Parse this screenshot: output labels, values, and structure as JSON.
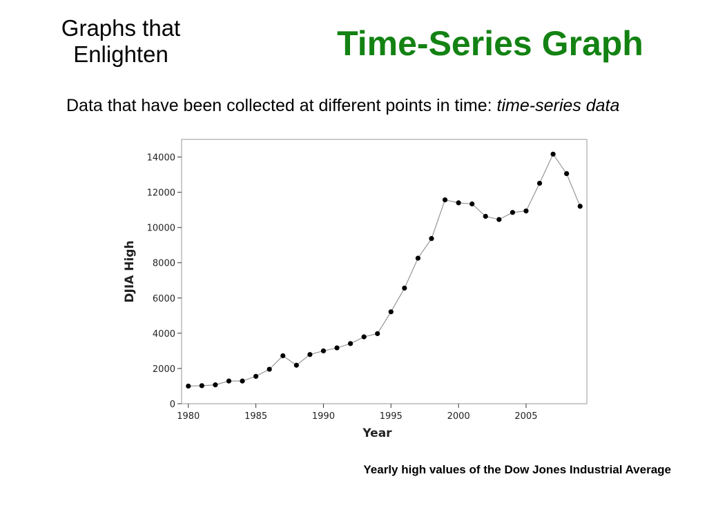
{
  "slide": {
    "section_title_line1": "Graphs that",
    "section_title_line2": "Enlighten",
    "title": "Time-Series Graph",
    "intro_text": "Data that have been collected at different points in time: ",
    "intro_term": "time-series data",
    "caption": "Yearly high values of the Dow Jones Industrial Average"
  },
  "chart_data": {
    "type": "line",
    "xlabel": "Year",
    "ylabel": "DJIA High",
    "xlim": [
      1979.5,
      2009.5
    ],
    "ylim": [
      0,
      15000
    ],
    "xticks": [
      1980,
      1985,
      1990,
      1995,
      2000,
      2005
    ],
    "yticks": [
      0,
      2000,
      4000,
      6000,
      8000,
      10000,
      12000,
      14000
    ],
    "grid": false,
    "line_color": "#8c8c8c",
    "marker_color": "#000000",
    "x": [
      1980,
      1981,
      1982,
      1983,
      1984,
      1985,
      1986,
      1987,
      1988,
      1989,
      1990,
      1991,
      1992,
      1993,
      1994,
      1995,
      1996,
      1997,
      1998,
      1999,
      2000,
      2001,
      2002,
      2003,
      2004,
      2005,
      2006,
      2007,
      2008,
      2009
    ],
    "values": [
      1000,
      1024,
      1071,
      1287,
      1287,
      1553,
      1956,
      2722,
      2184,
      2791,
      2999,
      3169,
      3413,
      3794,
      3978,
      5216,
      6561,
      8259,
      9374,
      11568,
      11401,
      11338,
      10635,
      10454,
      10855,
      10940,
      12510,
      14165,
      13058,
      11205
    ]
  }
}
